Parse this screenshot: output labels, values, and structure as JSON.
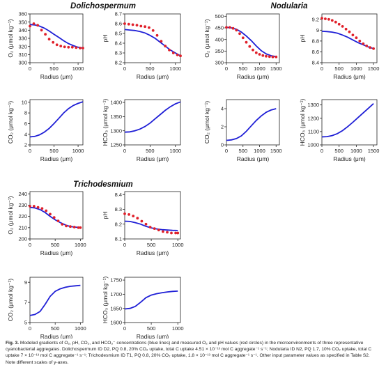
{
  "sections": [
    {
      "id": "dolichospermum",
      "title": "Dolichospermum"
    },
    {
      "id": "nodularia",
      "title": "Nodularia"
    },
    {
      "id": "trichodesmium",
      "title": "Trichodesmium"
    }
  ],
  "caption": {
    "label": "Fig. 3.",
    "text": "Modeled gradients of O₂, pH, CO₂, and HCO₃⁻ concentrations (blue lines) and measured O₂ and pH values (red circles) in the microenvironments of three representative cyanobacterial aggregates. Dolichospermum ID D2, PQ 0.8, 20% CO₂ uptake, total C uptake 4.51 × 10⁻¹³ mol C aggregate⁻¹ s⁻¹; Nodularia ID N2, PQ 1.7, 10% CO₂ uptake, total C uptake 7 × 10⁻¹³ mol C aggregate⁻¹ s⁻¹; Trichodesmium ID T1, PQ 0.8, 20% CO₂ uptake, 1.8 × 10⁻¹³ mol C aggregate⁻¹ s⁻¹. Other input parameter values as specified in Table S2. Note different scales of y-axes."
  },
  "colors": {
    "model_line": "#1f1fd6",
    "measured": "#e0202a",
    "axis": "#222222"
  },
  "chart_data": [
    {
      "id": "D_O2",
      "section": "Dolichospermum",
      "type": "line",
      "xlabel": "Radius (μm)",
      "ylabel": "O₂ (μmol kg⁻¹)",
      "xlim": [
        0,
        1100
      ],
      "ylim": [
        300,
        360
      ],
      "xticks": [
        0,
        500,
        1000
      ],
      "yticks": [
        300,
        310,
        320,
        330,
        340,
        350,
        360
      ],
      "series": [
        {
          "kind": "model",
          "x": [
            0,
            100,
            200,
            300,
            400,
            500,
            600,
            700,
            800,
            900,
            1000,
            1100
          ],
          "y": [
            347,
            346.5,
            345,
            342.5,
            339,
            335,
            331,
            327,
            323.5,
            321,
            319,
            318
          ]
        },
        {
          "kind": "measured",
          "x": [
            0,
            80,
            160,
            240,
            320,
            400,
            480,
            560,
            640,
            720,
            800,
            880,
            960,
            1040,
            1100
          ],
          "y": [
            345,
            348,
            346,
            340,
            335,
            329,
            325,
            322,
            320.5,
            319.5,
            319,
            319,
            318.5,
            318,
            318
          ]
        }
      ]
    },
    {
      "id": "D_pH",
      "section": "Dolichospermum",
      "type": "line",
      "xlabel": "Radius (μm)",
      "ylabel": "pH",
      "xlim": [
        0,
        1100
      ],
      "ylim": [
        8.2,
        8.7
      ],
      "xticks": [
        0,
        500,
        1000
      ],
      "yticks": [
        8.2,
        8.3,
        8.4,
        8.5,
        8.6,
        8.7
      ],
      "series": [
        {
          "kind": "model",
          "x": [
            0,
            100,
            200,
            300,
            400,
            500,
            600,
            700,
            800,
            900,
            1000,
            1100
          ],
          "y": [
            8.54,
            8.535,
            8.53,
            8.52,
            8.505,
            8.48,
            8.45,
            8.41,
            8.37,
            8.33,
            8.3,
            8.27
          ]
        },
        {
          "kind": "measured",
          "x": [
            0,
            80,
            160,
            240,
            320,
            400,
            480,
            560,
            640,
            720,
            800,
            880,
            960,
            1040,
            1100
          ],
          "y": [
            8.6,
            8.595,
            8.59,
            8.585,
            8.575,
            8.57,
            8.56,
            8.53,
            8.48,
            8.42,
            8.37,
            8.33,
            8.3,
            8.28,
            8.27
          ]
        }
      ]
    },
    {
      "id": "N_O2",
      "section": "Nodularia",
      "type": "line",
      "xlabel": "Radius (μm)",
      "ylabel": "O₂ (μmol kg⁻¹)",
      "xlim": [
        0,
        1600
      ],
      "ylim": [
        300,
        510
      ],
      "xticks": [
        0,
        500,
        1000,
        1500
      ],
      "yticks": [
        300,
        350,
        400,
        450,
        500
      ],
      "series": [
        {
          "kind": "model",
          "x": [
            0,
            150,
            300,
            450,
            600,
            750,
            900,
            1050,
            1200,
            1350,
            1500
          ],
          "y": [
            452,
            450,
            444,
            432,
            415,
            395,
            372,
            352,
            338,
            330,
            326
          ]
        },
        {
          "kind": "measured",
          "x": [
            0,
            100,
            200,
            300,
            400,
            500,
            600,
            700,
            800,
            900,
            1000,
            1100,
            1200,
            1300,
            1400,
            1500
          ],
          "y": [
            452,
            452,
            448,
            440,
            425,
            407,
            388,
            370,
            355,
            343,
            336,
            331,
            328,
            326,
            325,
            325
          ]
        }
      ]
    },
    {
      "id": "N_pH",
      "section": "Nodularia",
      "type": "line",
      "xlabel": "Radius (μm)",
      "ylabel": "pH",
      "xlim": [
        0,
        1600
      ],
      "ylim": [
        8.4,
        9.3
      ],
      "xticks": [
        0,
        500,
        1000,
        1500
      ],
      "yticks": [
        8.4,
        8.6,
        8.8,
        9.0,
        9.2
      ],
      "series": [
        {
          "kind": "model",
          "x": [
            0,
            150,
            300,
            450,
            600,
            750,
            900,
            1050,
            1200,
            1350,
            1500
          ],
          "y": [
            8.98,
            8.975,
            8.965,
            8.945,
            8.91,
            8.87,
            8.82,
            8.77,
            8.73,
            8.69,
            8.66
          ]
        },
        {
          "kind": "measured",
          "x": [
            0,
            100,
            200,
            300,
            400,
            500,
            600,
            700,
            800,
            900,
            1000,
            1100,
            1200,
            1300,
            1400,
            1500
          ],
          "y": [
            9.22,
            9.21,
            9.2,
            9.18,
            9.15,
            9.11,
            9.07,
            9.02,
            8.97,
            8.91,
            8.86,
            8.8,
            8.75,
            8.71,
            8.68,
            8.66
          ]
        }
      ]
    },
    {
      "id": "D_CO2",
      "section": "Dolichospermum",
      "type": "line",
      "xlabel": "Radius (μm)",
      "ylabel": "CO₂ (μmol kg⁻¹)",
      "xlim": [
        0,
        1100
      ],
      "ylim": [
        2,
        10.5
      ],
      "xticks": [
        0,
        500,
        1000
      ],
      "yticks": [
        2,
        4,
        6,
        8,
        10
      ],
      "series": [
        {
          "kind": "model",
          "x": [
            0,
            100,
            200,
            300,
            400,
            500,
            600,
            700,
            800,
            900,
            1000,
            1100
          ],
          "y": [
            3.5,
            3.6,
            3.9,
            4.4,
            5.1,
            6.0,
            7.0,
            8.0,
            8.8,
            9.4,
            9.8,
            10.1
          ]
        }
      ]
    },
    {
      "id": "D_HCO3",
      "section": "Dolichospermum",
      "type": "line",
      "xlabel": "Radius (μm)",
      "ylabel": "HCO₃ (μmol kg⁻¹)",
      "xlim": [
        0,
        1100
      ],
      "ylim": [
        1250,
        1410
      ],
      "xticks": [
        0,
        500,
        1000
      ],
      "yticks": [
        1250,
        1300,
        1350,
        1400
      ],
      "series": [
        {
          "kind": "model",
          "x": [
            0,
            100,
            200,
            300,
            400,
            500,
            600,
            700,
            800,
            900,
            1000,
            1100
          ],
          "y": [
            1295,
            1296,
            1300,
            1306,
            1315,
            1327,
            1342,
            1357,
            1372,
            1385,
            1395,
            1402
          ]
        }
      ]
    },
    {
      "id": "N_CO2",
      "section": "Nodularia",
      "type": "line",
      "xlabel": "Radius (μm)",
      "ylabel": "CO₂ (μmol kg⁻¹)",
      "xlim": [
        0,
        1600
      ],
      "ylim": [
        0,
        5
      ],
      "xticks": [
        0,
        500,
        1000,
        1500
      ],
      "yticks": [
        0,
        2,
        4
      ],
      "series": [
        {
          "kind": "model",
          "x": [
            0,
            150,
            300,
            450,
            600,
            750,
            900,
            1050,
            1200,
            1350,
            1500
          ],
          "y": [
            0.5,
            0.55,
            0.7,
            1.0,
            1.5,
            2.1,
            2.7,
            3.2,
            3.6,
            3.85,
            4.0
          ]
        }
      ]
    },
    {
      "id": "N_HCO3",
      "section": "Nodularia",
      "type": "line",
      "xlabel": "Radius (μm)",
      "ylabel": "HCO₃ (μmol kg⁻¹)",
      "xlim": [
        0,
        1600
      ],
      "ylim": [
        1000,
        1340
      ],
      "xticks": [
        0,
        500,
        1000,
        1500
      ],
      "yticks": [
        1000,
        1100,
        1200,
        1300
      ],
      "series": [
        {
          "kind": "model",
          "x": [
            0,
            150,
            300,
            450,
            600,
            750,
            900,
            1050,
            1200,
            1350,
            1500
          ],
          "y": [
            1060,
            1062,
            1070,
            1085,
            1107,
            1137,
            1170,
            1205,
            1240,
            1275,
            1310
          ]
        }
      ]
    },
    {
      "id": "T_O2",
      "section": "Trichodesmium",
      "type": "line",
      "xlabel": "Radius (μm)",
      "ylabel": "O₂ (μmol kg⁻¹)",
      "xlim": [
        0,
        1050
      ],
      "ylim": [
        200,
        242
      ],
      "xticks": [
        0,
        500,
        1000
      ],
      "yticks": [
        200,
        210,
        220,
        230,
        240
      ],
      "series": [
        {
          "kind": "model",
          "x": [
            0,
            100,
            200,
            300,
            400,
            500,
            600,
            700,
            800,
            900,
            1000
          ],
          "y": [
            228,
            227.5,
            226,
            223.5,
            220,
            217,
            214.5,
            212.5,
            211,
            210.5,
            210
          ]
        },
        {
          "kind": "measured",
          "x": [
            0,
            80,
            160,
            240,
            320,
            400,
            480,
            560,
            640,
            720,
            800,
            880,
            960,
            1000
          ],
          "y": [
            229,
            229,
            228,
            227,
            225,
            222,
            219,
            216,
            213,
            211.5,
            211,
            210.5,
            210,
            210
          ]
        }
      ]
    },
    {
      "id": "T_pH",
      "section": "Trichodesmium",
      "type": "line",
      "xlabel": "Radius (μm)",
      "ylabel": "pH",
      "xlim": [
        0,
        1050
      ],
      "ylim": [
        8.1,
        8.42
      ],
      "xticks": [
        0,
        500,
        1000
      ],
      "yticks": [
        8.1,
        8.2,
        8.3,
        8.4
      ],
      "series": [
        {
          "kind": "model",
          "x": [
            0,
            100,
            200,
            300,
            400,
            500,
            600,
            700,
            800,
            900,
            1000
          ],
          "y": [
            8.22,
            8.218,
            8.21,
            8.2,
            8.185,
            8.175,
            8.168,
            8.163,
            8.16,
            8.158,
            8.157
          ]
        },
        {
          "kind": "measured",
          "x": [
            0,
            80,
            160,
            240,
            320,
            400,
            480,
            560,
            640,
            720,
            800,
            880,
            960,
            1000
          ],
          "y": [
            8.27,
            8.265,
            8.255,
            8.24,
            8.22,
            8.2,
            8.18,
            8.17,
            8.16,
            8.15,
            8.145,
            8.14,
            8.14,
            8.14
          ]
        }
      ]
    },
    {
      "id": "T_CO2",
      "section": "Trichodesmium",
      "type": "line",
      "xlabel": "Radius (μm)",
      "ylabel": "CO₂ (μmol kg⁻¹)",
      "xlim": [
        0,
        1050
      ],
      "ylim": [
        5,
        9.5
      ],
      "xticks": [
        0,
        500,
        1000
      ],
      "yticks": [
        5,
        7,
        9
      ],
      "series": [
        {
          "kind": "model",
          "x": [
            0,
            100,
            200,
            300,
            400,
            500,
            600,
            700,
            800,
            900,
            1000
          ],
          "y": [
            5.7,
            5.8,
            6.1,
            6.8,
            7.6,
            8.1,
            8.35,
            8.5,
            8.6,
            8.65,
            8.7
          ]
        }
      ]
    },
    {
      "id": "T_HCO3",
      "section": "Trichodesmium",
      "type": "line",
      "xlabel": "Radius (μm)",
      "ylabel": "HCO₃ (μmol kg⁻¹)",
      "xlim": [
        0,
        1050
      ],
      "ylim": [
        1600,
        1760
      ],
      "xticks": [
        0,
        500,
        1000
      ],
      "yticks": [
        1600,
        1650,
        1700,
        1750
      ],
      "series": [
        {
          "kind": "model",
          "x": [
            0,
            100,
            200,
            300,
            400,
            500,
            600,
            700,
            800,
            900,
            1000
          ],
          "y": [
            1648,
            1650,
            1657,
            1672,
            1688,
            1697,
            1702,
            1705,
            1708,
            1710,
            1711
          ]
        }
      ]
    }
  ]
}
